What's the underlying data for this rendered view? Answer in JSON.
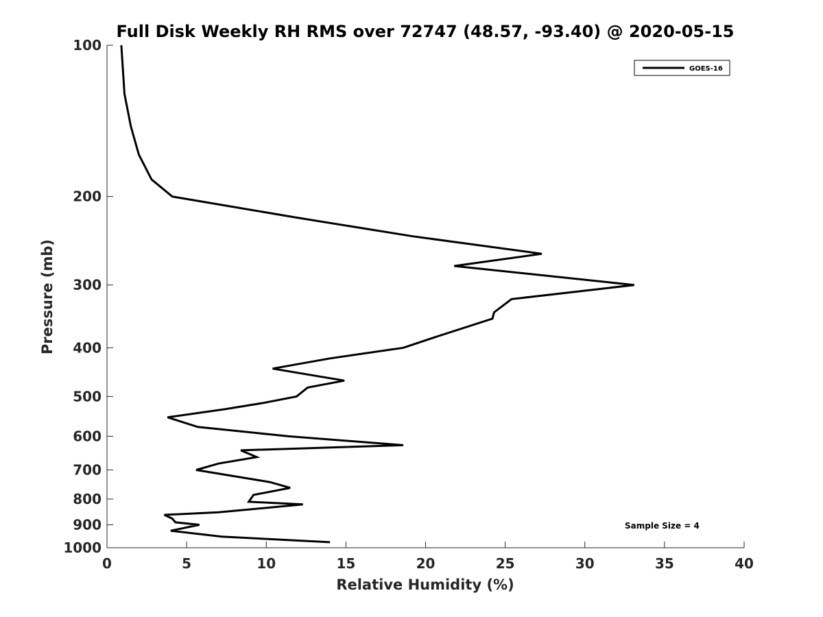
{
  "chart_data": {
    "type": "line",
    "title": "Full Disk Weekly RH RMS over 72747 (48.57, -93.40) @ 2020-05-15",
    "xlabel": "Relative Humidity (%)",
    "ylabel": "Pressure (mb)",
    "xlim": [
      0,
      40
    ],
    "ylim": [
      1000,
      100
    ],
    "yscale": "log",
    "y_reversed": true,
    "xticks": [
      "0",
      "5",
      "10",
      "15",
      "20",
      "25",
      "30",
      "35",
      "40"
    ],
    "yticks": [
      "100",
      "200",
      "300",
      "400",
      "500",
      "600",
      "700",
      "800",
      "900",
      "1000"
    ],
    "grid": false,
    "legend_position": "top-right",
    "annotation": "Sample Size = 4",
    "series": [
      {
        "name": "GOES-16",
        "color": "#000000",
        "x": [
          14.0,
          7.2,
          4.0,
          5.8,
          4.3,
          4.1,
          3.6,
          7.0,
          12.3,
          8.9,
          9.2,
          11.5,
          10.2,
          5.6,
          7.0,
          9.4,
          8.4,
          18.6,
          11.4,
          5.7,
          3.8,
          7.4,
          9.8,
          11.9,
          12.6,
          14.9,
          10.4,
          14.0,
          18.6,
          20.7,
          24.2,
          24.3,
          25.4,
          33.1,
          21.8,
          27.3,
          19.2,
          11.8,
          4.1,
          2.8,
          2.0,
          1.5,
          1.1,
          0.9
        ],
        "y": [
          975,
          950,
          925,
          900,
          890,
          875,
          860,
          850,
          820,
          810,
          785,
          760,
          740,
          700,
          680,
          660,
          640,
          625,
          600,
          575,
          550,
          530,
          515,
          500,
          480,
          465,
          440,
          420,
          400,
          380,
          350,
          340,
          320,
          300,
          275,
          260,
          240,
          220,
          200,
          185,
          165,
          145,
          125,
          100
        ]
      }
    ]
  }
}
